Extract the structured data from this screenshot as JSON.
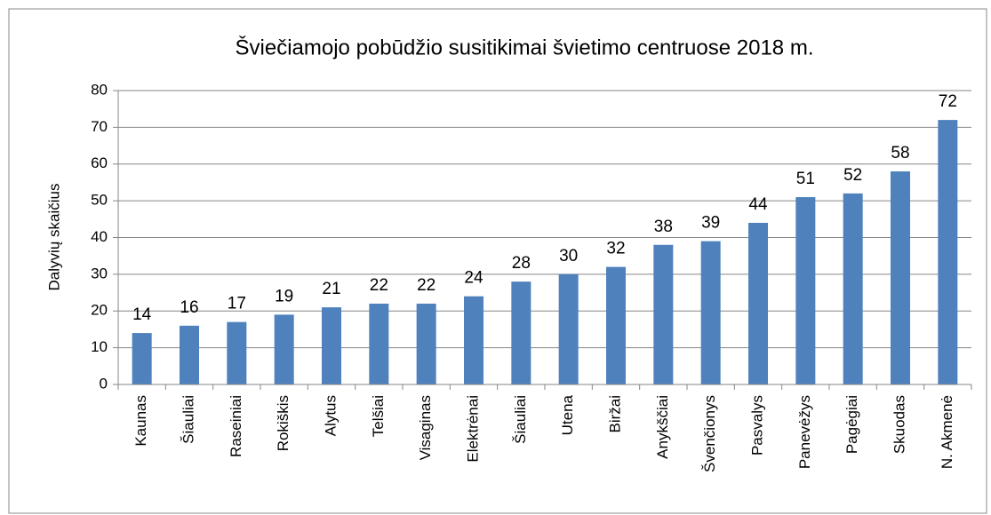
{
  "chart_data": {
    "type": "bar",
    "title": "Šviečiamojo pobūdžio susitikimai švietimo centruose 2018 m.",
    "y_label": "Dalyvių skaičius",
    "categories": [
      "Kaunas",
      "Šiauliai",
      "Raseiniai",
      "Rokiškis",
      "Alytus",
      "Telšiai",
      "Visaginas",
      "Elektrėnai",
      "Šiauliai",
      "Utena",
      "Biržai",
      "Anykščiai",
      "Švenčionys",
      "Pasvalys",
      "Panevėžys",
      "Pagėgiai",
      "Skuodas",
      "N. Akmenė"
    ],
    "values": [
      14,
      16,
      17,
      19,
      21,
      22,
      22,
      24,
      28,
      30,
      32,
      38,
      39,
      44,
      51,
      52,
      58,
      72
    ],
    "color": "#4f81bd",
    "ylim": [
      0,
      80
    ],
    "yticks": [
      0,
      10,
      20,
      30,
      40,
      50,
      60,
      70,
      80
    ],
    "grid": true
  }
}
